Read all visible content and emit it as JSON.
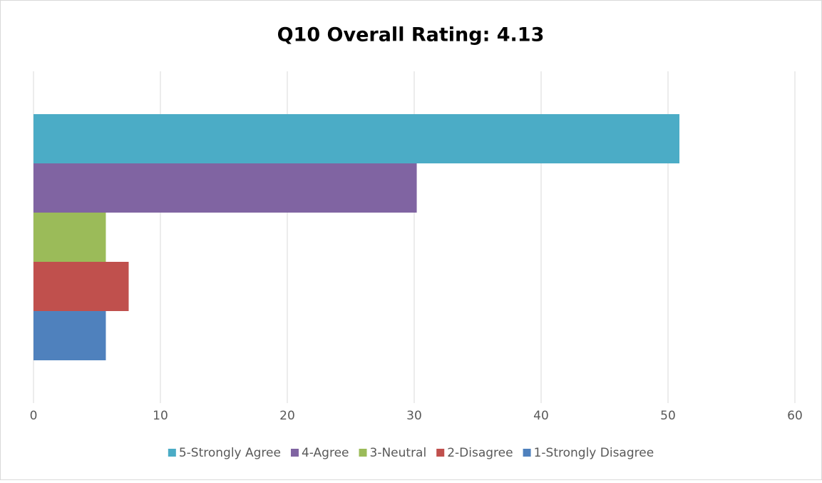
{
  "chart_data": {
    "type": "bar",
    "orientation": "horizontal",
    "title": "Q10 Overall Rating: 4.13",
    "categories": [
      null
    ],
    "series": [
      {
        "name": "5-Strongly Agree",
        "color": "#4bacc6",
        "values": [
          50.9
        ]
      },
      {
        "name": "4-Agree",
        "color": "#8064a2",
        "values": [
          30.2
        ]
      },
      {
        "name": "3-Neutral",
        "color": "#9bbb59",
        "values": [
          5.7
        ]
      },
      {
        "name": "2-Disagree",
        "color": "#c0504d",
        "values": [
          7.5
        ]
      },
      {
        "name": "1-Strongly Disagree",
        "color": "#4f81bd",
        "values": [
          5.7
        ]
      }
    ],
    "xlim": [
      0,
      60
    ],
    "xticks": [
      0,
      10,
      20,
      30,
      40,
      50,
      60
    ],
    "grid": true,
    "legend": "bottom"
  }
}
